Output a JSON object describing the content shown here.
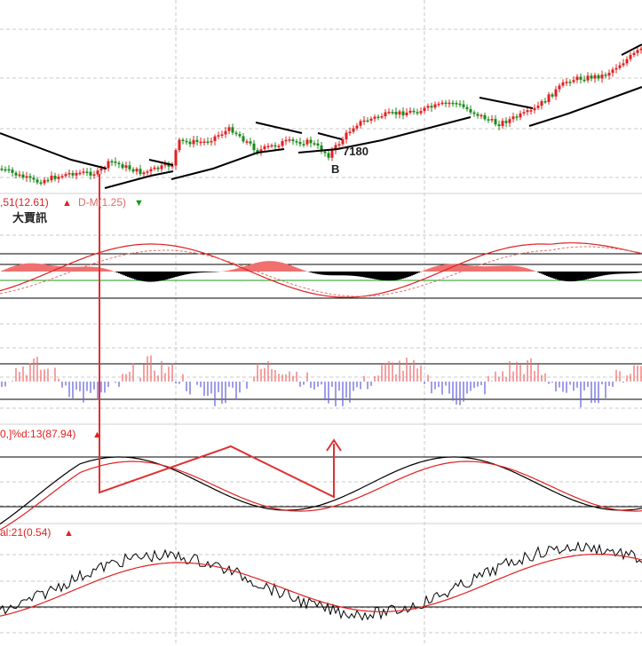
{
  "colors": {
    "up": "#e02020",
    "down": "#1a8a1a",
    "ma": "#000000",
    "k_line": "#000000",
    "d_line": "#e02020",
    "hist_pos": "#f07070",
    "hist_neg": "#6a6ae0",
    "grid": "#c8c8c8",
    "annotation": "#e03030"
  },
  "labels": {
    "dmi_value": ",51(12.61)",
    "dmi_value_arrow": "▲",
    "dm_value": "D-M(1.25)",
    "dm_value_arrow": "▼",
    "macd_badge": "大賈訊",
    "kd_value": "0,]%d:13(87.94)",
    "kd_arrow": "▲",
    "osc_value": "al:21(0.54)",
    "osc_arrow": "▲",
    "price_marker": "7180",
    "buy_marker": "B"
  },
  "chart_data": [
    {
      "type": "candlestick",
      "annotations": [
        "7180",
        "B"
      ],
      "price_trend": [
        100,
        98,
        97,
        99,
        104,
        103,
        108,
        112,
        110,
        111,
        113,
        118,
        122,
        121,
        126,
        131,
        134,
        138,
        142
      ]
    },
    {
      "type": "line",
      "title": "",
      "legend": [
        ",51(12.61)",
        "D-M(1.25)"
      ],
      "badge": "大賈訊"
    },
    {
      "type": "bar",
      "description_label": ""
    },
    {
      "type": "line",
      "legend": [
        "0,]%d:13(87.94)"
      ]
    },
    {
      "type": "line",
      "legend": [
        "al:21(0.54)"
      ]
    }
  ]
}
